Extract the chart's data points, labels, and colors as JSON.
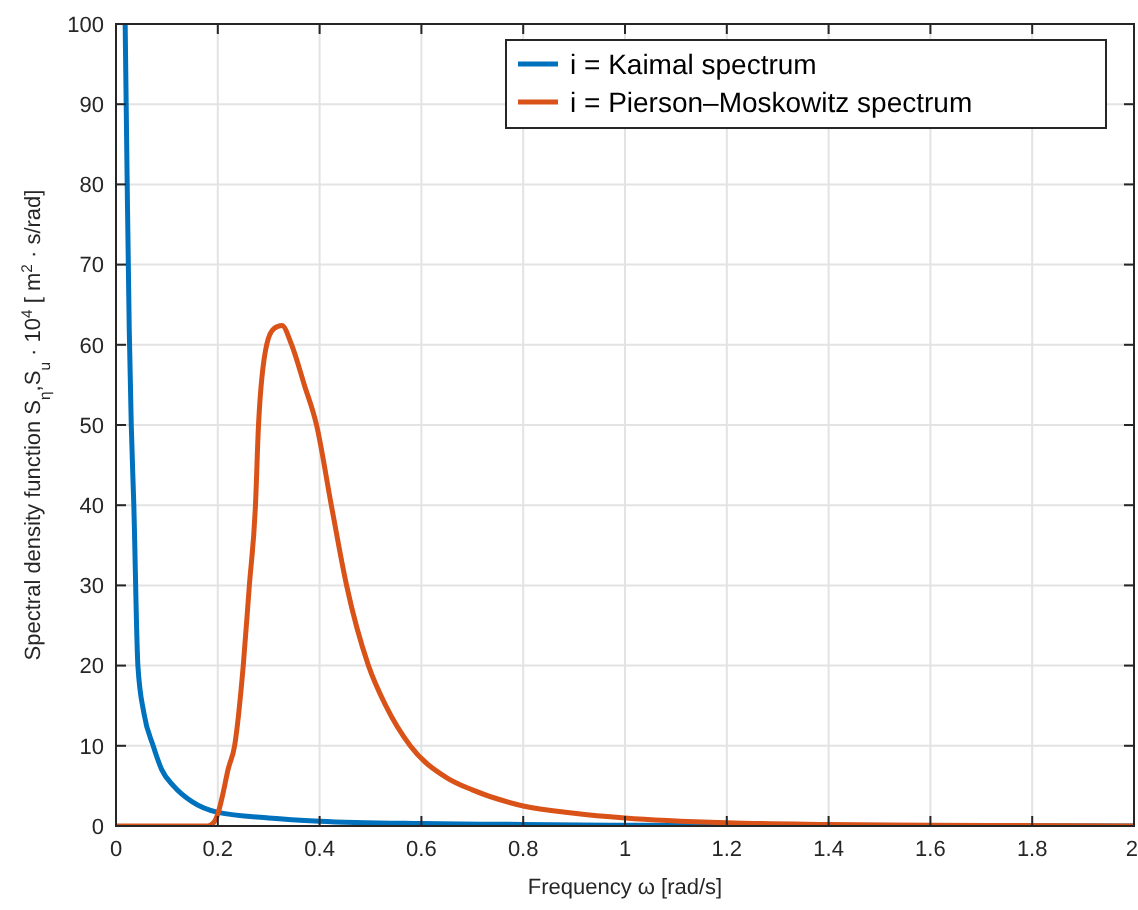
{
  "chart_data": {
    "type": "line",
    "xlabel": "Frequency ω [rad/s]",
    "ylabel": "Spectral density function S$_{η}$,S$_{u}$ · 10$^{4}$ [ m$^{2}$ · s/rad]",
    "xlim": [
      0,
      2
    ],
    "ylim": [
      0,
      100
    ],
    "xticks": [
      0,
      0.2,
      0.4,
      0.6,
      0.8,
      1,
      1.2,
      1.4,
      1.6,
      1.8,
      2
    ],
    "yticks": [
      0,
      10,
      20,
      30,
      40,
      50,
      60,
      70,
      80,
      90,
      100
    ],
    "grid": true,
    "legend": "top right",
    "line_style": "solid",
    "series": [
      {
        "name": "i = Kaimal  spectrum",
        "color": "#0072bd",
        "x": [
          0.018,
          0.022,
          0.026,
          0.03,
          0.035,
          0.043,
          0.055,
          0.073,
          0.09,
          0.113,
          0.15,
          0.2,
          0.3,
          0.4,
          0.6,
          0.8,
          1,
          2
        ],
        "values": [
          100,
          80,
          62,
          50,
          40,
          20,
          14,
          10,
          7,
          5,
          3,
          1.7,
          1,
          0.6,
          0.3,
          0.2,
          0.1,
          0
        ]
      },
      {
        "name": "i = Pierson–Moskowitz spectrum",
        "color": "#d95319",
        "x": [
          0,
          0.1,
          0.18,
          0.19,
          0.2,
          0.21,
          0.22,
          0.233,
          0.25,
          0.262,
          0.274,
          0.28,
          0.296,
          0.31,
          0.326,
          0.345,
          0.37,
          0.394,
          0.423,
          0.453,
          0.496,
          0.53,
          0.578,
          0.65,
          0.7,
          0.8,
          0.9,
          1,
          1.2,
          1.4,
          1.6,
          2
        ],
        "values": [
          0,
          0,
          0,
          0.3,
          1.5,
          4,
          7,
          10,
          20,
          30,
          40,
          50,
          60,
          62,
          62.4,
          60,
          55,
          50,
          40,
          30,
          20,
          15,
          10,
          6,
          4.5,
          2.5,
          1.6,
          1,
          0.4,
          0.2,
          0.1,
          0
        ]
      }
    ]
  }
}
